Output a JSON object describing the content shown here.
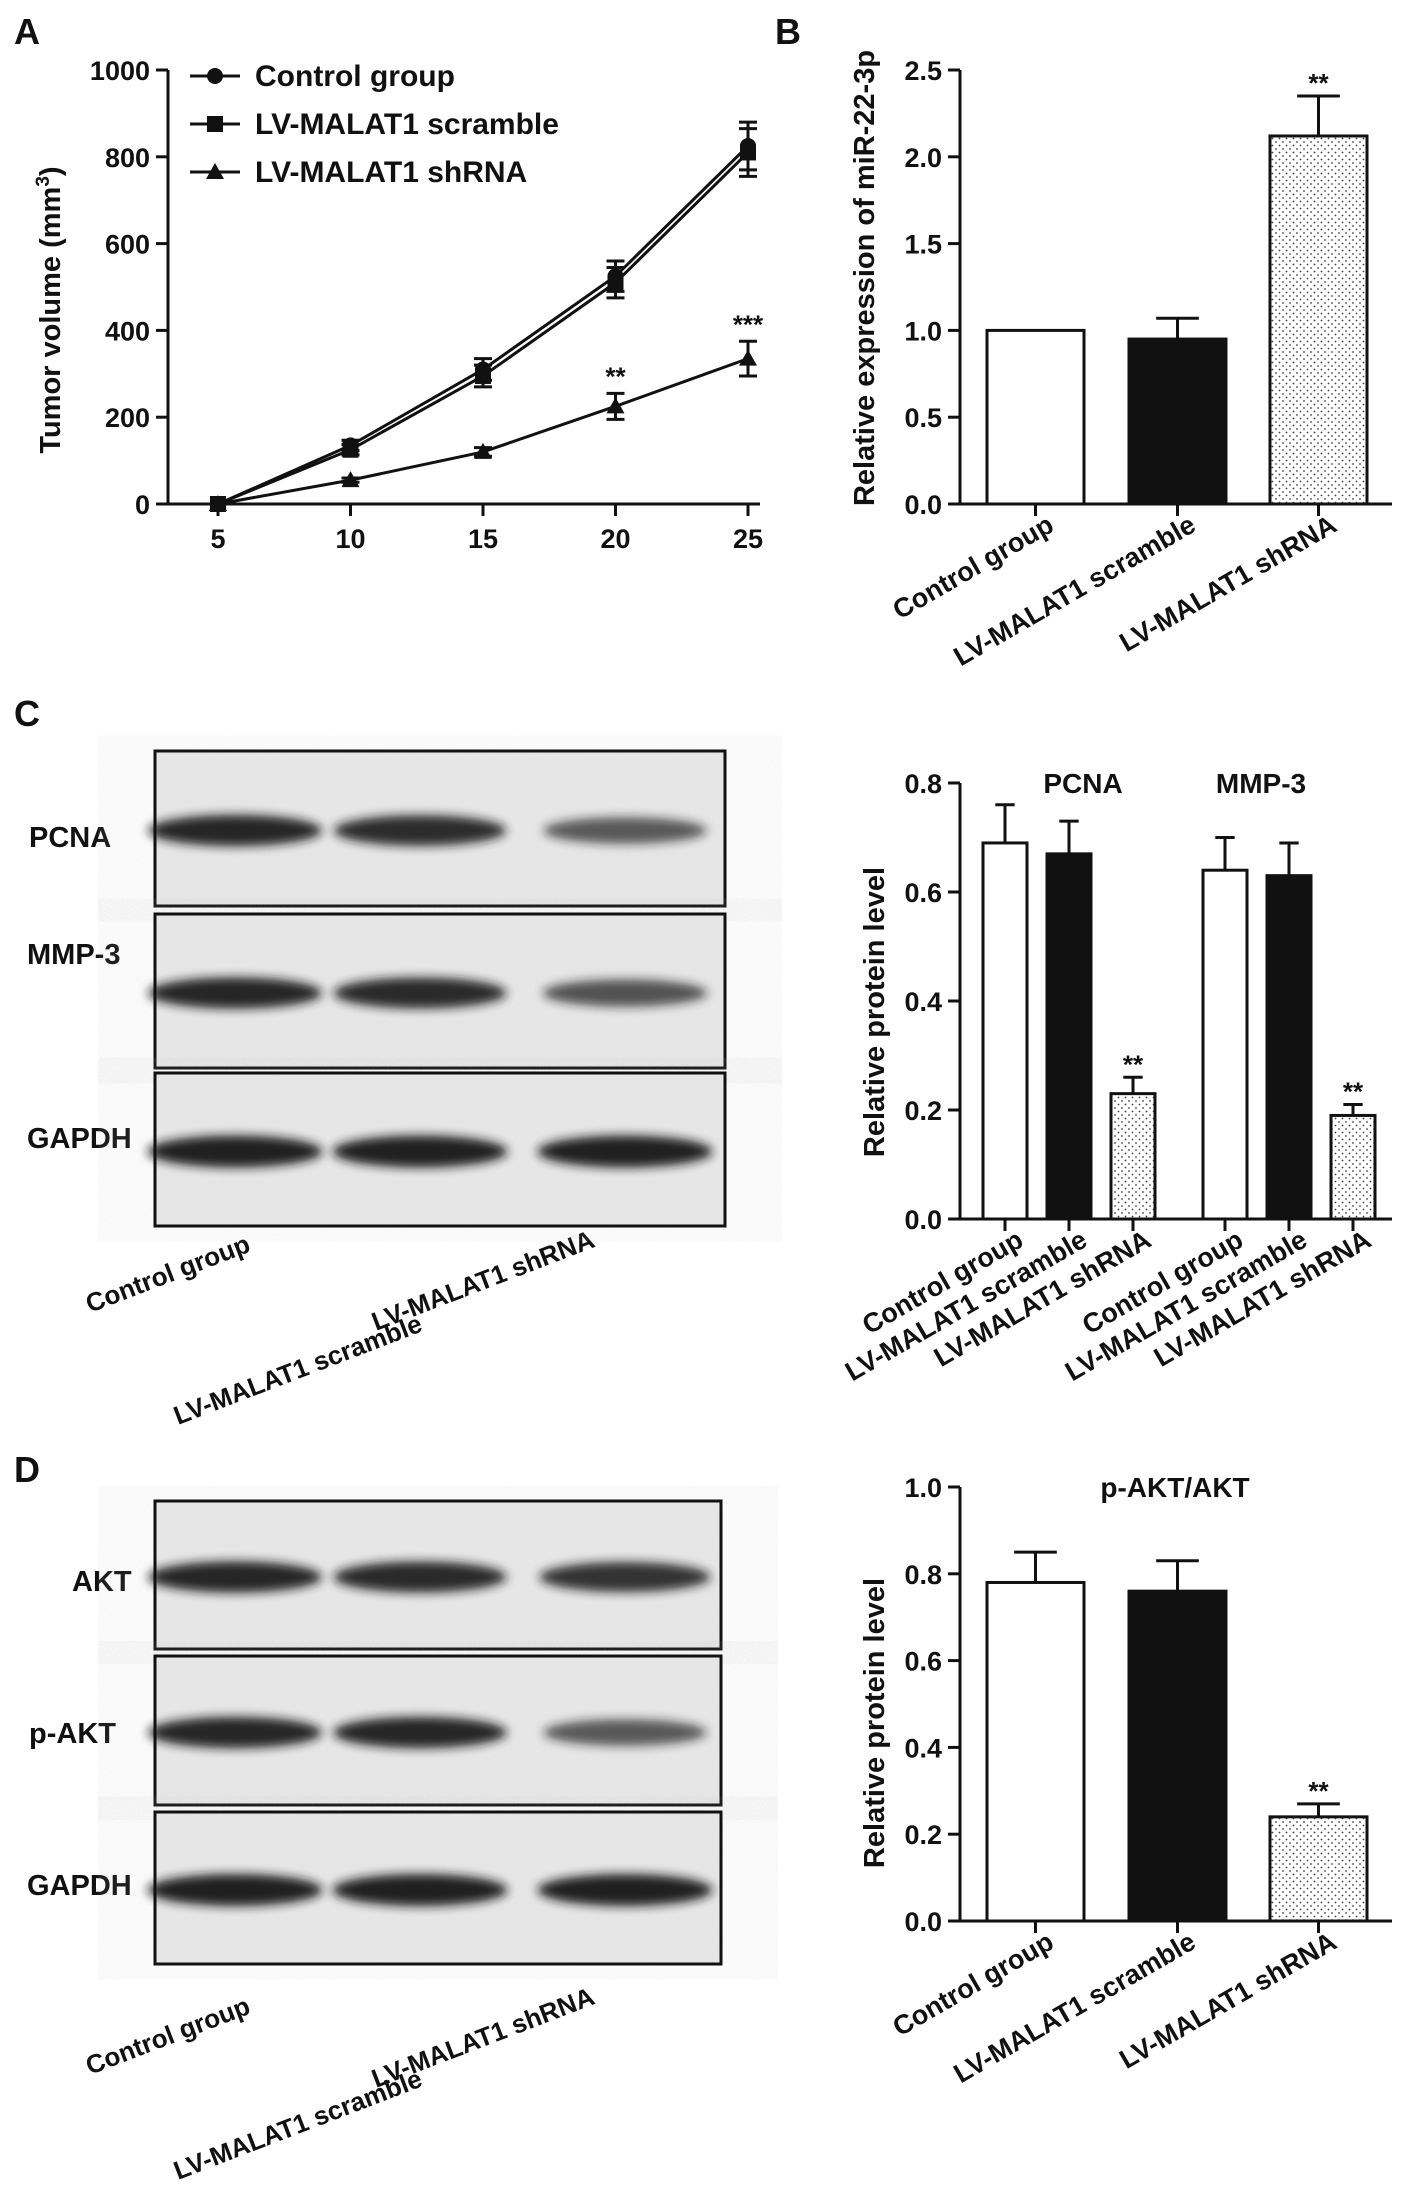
{
  "panels": {
    "A": {
      "letter": "A"
    },
    "B": {
      "letter": "B"
    },
    "C": {
      "letter": "C"
    },
    "D": {
      "letter": "D"
    }
  },
  "colors": {
    "ink": "#111111",
    "control": "#ffffff",
    "scramble": "#111111",
    "shrna": "#f2f2f2",
    "blot_bg": "#e9e9e9"
  },
  "blots": {
    "C": {
      "rows": [
        "PCNA",
        "MMP-3",
        "GAPDH"
      ],
      "intensities": [
        [
          0.95,
          0.9,
          0.55
        ],
        [
          0.95,
          0.92,
          0.6
        ],
        [
          1.0,
          1.0,
          1.0
        ]
      ],
      "lanes": [
        "Control group",
        "LV-MALAT1 scramble",
        "LV-MALAT1 shRNA"
      ]
    },
    "D": {
      "rows": [
        "AKT",
        "p-AKT",
        "GAPDH"
      ],
      "intensities": [
        [
          0.95,
          0.92,
          0.85
        ],
        [
          0.95,
          0.95,
          0.55
        ],
        [
          1.0,
          1.0,
          1.0
        ]
      ],
      "lanes": [
        "Control group",
        "LV-MALAT1 scramble",
        "LV-MALAT1 shRNA"
      ]
    }
  },
  "chart_data": [
    {
      "id": "A",
      "type": "line",
      "ylabel": "Tumor volume (mm",
      "ylabel_sup": "3",
      "ylabel_close": ")",
      "ylim": [
        0,
        1000
      ],
      "yticks": [
        "0",
        "200",
        "400",
        "600",
        "800",
        "1000"
      ],
      "x": [
        5,
        10,
        15,
        20,
        25
      ],
      "xticks": [
        "5",
        "10",
        "15",
        "20",
        "25"
      ],
      "series": [
        {
          "name": "Control group",
          "marker": "circle",
          "values": [
            0,
            135,
            310,
            525,
            825
          ],
          "errors": [
            0,
            12,
            25,
            35,
            55
          ]
        },
        {
          "name": "LV-MALAT1 scramble",
          "marker": "square",
          "values": [
            0,
            125,
            295,
            510,
            810
          ],
          "errors": [
            0,
            12,
            25,
            35,
            55
          ]
        },
        {
          "name": "LV-MALAT1 shRNA",
          "marker": "triangle",
          "values": [
            0,
            55,
            120,
            225,
            335
          ],
          "errors": [
            0,
            5,
            10,
            30,
            40
          ]
        }
      ],
      "annotations": [
        {
          "x": 20,
          "text": "**"
        },
        {
          "x": 25,
          "text": "***"
        }
      ],
      "legend": "top-left"
    },
    {
      "id": "B",
      "type": "bar",
      "ylabel": "Relative expression of miR-22-3p",
      "ylim": [
        0,
        2.5
      ],
      "yticks": [
        "0.0",
        "0.5",
        "1.0",
        "1.5",
        "2.0",
        "2.5"
      ],
      "categories": [
        "Control group",
        "LV-MALAT1 scramble",
        "LV-MALAT1 shRNA"
      ],
      "values": [
        1.0,
        0.95,
        2.12
      ],
      "errors": [
        0,
        0.12,
        0.23
      ],
      "annotations": [
        "",
        "",
        "**"
      ]
    },
    {
      "id": "C",
      "type": "bar",
      "ylabel": "Relative protein level",
      "ylim": [
        0,
        0.8
      ],
      "yticks": [
        "0.0",
        "0.2",
        "0.4",
        "0.6",
        "0.8"
      ],
      "groups": [
        {
          "name": "PCNA",
          "categories": [
            "Control group",
            "LV-MALAT1 scramble",
            "LV-MALAT1 shRNA"
          ],
          "values": [
            0.69,
            0.67,
            0.23
          ],
          "errors": [
            0.07,
            0.06,
            0.03
          ],
          "annotations": [
            "",
            "",
            "**"
          ]
        },
        {
          "name": "MMP-3",
          "categories": [
            "Control group",
            "LV-MALAT1 scramble",
            "LV-MALAT1 shRNA"
          ],
          "values": [
            0.64,
            0.63,
            0.19
          ],
          "errors": [
            0.06,
            0.06,
            0.02
          ],
          "annotations": [
            "",
            "",
            "**"
          ]
        }
      ]
    },
    {
      "id": "D",
      "type": "bar",
      "title": "p-AKT/AKT",
      "ylabel": "Relative protein level",
      "ylim": [
        0,
        1.0
      ],
      "yticks": [
        "0.0",
        "0.2",
        "0.4",
        "0.6",
        "0.8",
        "1.0"
      ],
      "categories": [
        "Control group",
        "LV-MALAT1 scramble",
        "LV-MALAT1 shRNA"
      ],
      "values": [
        0.78,
        0.76,
        0.24
      ],
      "errors": [
        0.07,
        0.07,
        0.03
      ],
      "annotations": [
        "",
        "",
        "**"
      ]
    }
  ]
}
